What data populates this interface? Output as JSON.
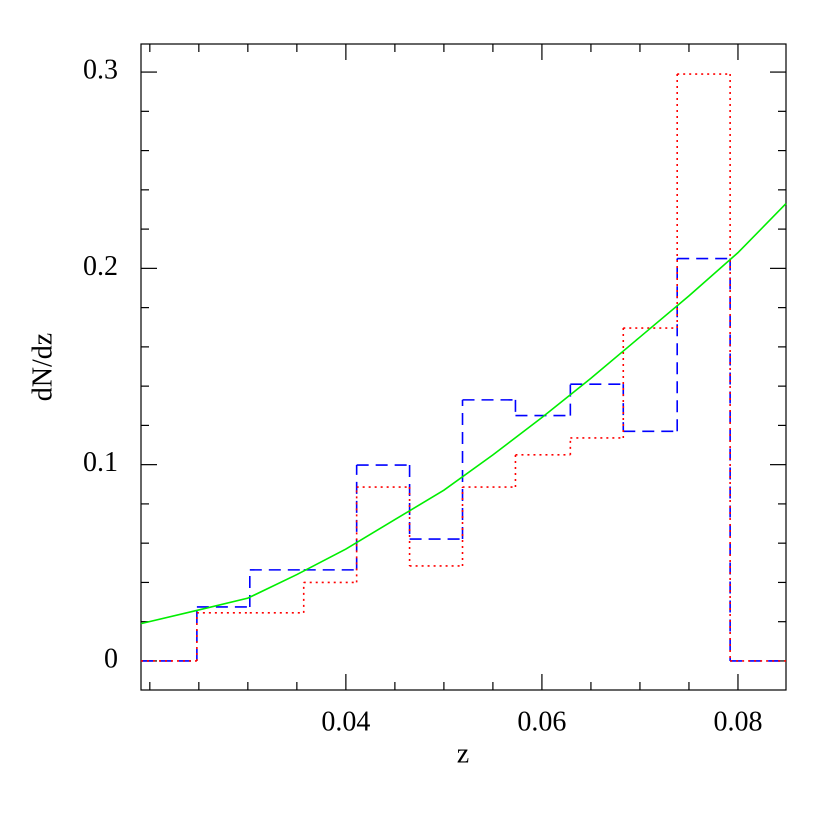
{
  "chart_data": {
    "type": "histogram",
    "xlabel": "z",
    "ylabel": "dN/dz",
    "bins": [
      0.0191,
      0.0248,
      0.0302,
      0.0357,
      0.0411,
      0.0465,
      0.0519,
      0.0573,
      0.0629,
      0.0683,
      0.0738,
      0.0792,
      0.0849
    ],
    "series": [
      {
        "color": "#0000ff",
        "linestyle": "dashed",
        "values": [
          0,
          0.0275,
          0.0464,
          0.0464,
          0.0998,
          0.0621,
          0.133,
          0.125,
          0.141,
          0.117,
          0.205,
          0
        ]
      },
      {
        "color": "#ff0000",
        "linestyle": "dotted",
        "values": [
          0,
          0.0245,
          0.0245,
          0.04,
          0.0886,
          0.0484,
          0.0886,
          0.105,
          0.1136,
          0.1696,
          0.299,
          0
        ]
      },
      {
        "type": "line",
        "color": "#00ee00",
        "linestyle": "solid",
        "x": [
          0.0191,
          0.025,
          0.03,
          0.035,
          0.04,
          0.045,
          0.05,
          0.055,
          0.06,
          0.065,
          0.07,
          0.075,
          0.08,
          0.0849
        ],
        "values": [
          0.019,
          0.026,
          0.032,
          0.044,
          0.057,
          0.072,
          0.087,
          0.105,
          0.124,
          0.144,
          0.165,
          0.186,
          0.208,
          0.233
        ]
      }
    ],
    "xlim": [
      0.0191,
      0.0849
    ],
    "ylim": [
      -0.0148,
      0.3143
    ],
    "xticks": [
      0.04,
      0.06,
      0.08
    ],
    "xminorticks": [
      0.02,
      0.025,
      0.03,
      0.035,
      0.045,
      0.05,
      0.055,
      0.065,
      0.07,
      0.075
    ],
    "yticks": [
      0,
      0.1,
      0.2,
      0.3
    ],
    "yminorticks": [
      0.02,
      0.04,
      0.06,
      0.08,
      0.12,
      0.14,
      0.16,
      0.18,
      0.22,
      0.24,
      0.26,
      0.28
    ]
  }
}
